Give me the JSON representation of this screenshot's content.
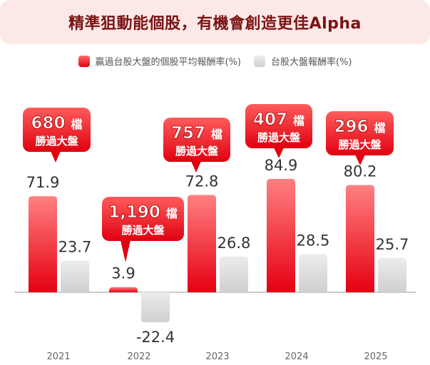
{
  "chart_data": {
    "type": "bar",
    "title": "精準狙動能個股，有機會創造更佳Alpha",
    "categories": [
      "2021",
      "2022",
      "2023",
      "2024",
      "2025"
    ],
    "series": [
      {
        "name": "贏過台股大盤的個股平均報酬率(%)",
        "values": [
          71.9,
          3.9,
          72.8,
          84.9,
          80.2
        ],
        "color": "#e50012"
      },
      {
        "name": "台股大盤報酬率(%)",
        "values": [
          23.7,
          -22.4,
          26.8,
          28.5,
          25.7
        ],
        "color": "#d4d4d4"
      }
    ],
    "annotations": [
      {
        "count": "680",
        "unit": "檔",
        "text": "勝過大盤"
      },
      {
        "count": "1,190",
        "unit": "檔",
        "text": "勝過大盤"
      },
      {
        "count": "757",
        "unit": "檔",
        "text": "勝過大盤"
      },
      {
        "count": "407",
        "unit": "檔",
        "text": "勝過大盤"
      },
      {
        "count": "296",
        "unit": "檔",
        "text": "勝過大盤"
      }
    ],
    "legend_position": "top-center",
    "grid": false
  }
}
